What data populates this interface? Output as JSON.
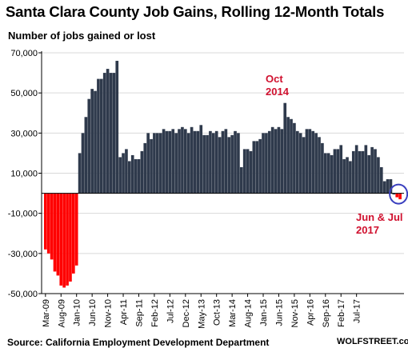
{
  "chart_data": {
    "type": "bar",
    "title": "Santa Clara County Job Gains, Rolling 12-Month Totals",
    "ylabel": "Number of jobs gained or lost",
    "ylim": [
      -50000,
      70000
    ],
    "y_ticks": [
      "70,000",
      "50,000",
      "30,000",
      "10,000",
      "-10,000",
      "-30,000",
      "-50,000"
    ],
    "y_tick_values": [
      70000,
      50000,
      30000,
      10000,
      -10000,
      -30000,
      -50000
    ],
    "x_start": "Mar-09",
    "x_ticks": [
      "Mar-09",
      "Aug-09",
      "Jan-10",
      "Jun-10",
      "Nov-10",
      "Apr-11",
      "Sep-11",
      "Feb-12",
      "Jul-12",
      "Dec-12",
      "May-13",
      "Oct-13",
      "Mar-14",
      "Aug-14",
      "Jan-15",
      "Jun-15",
      "Nov-15",
      "Apr-16",
      "Sep-16",
      "Feb-17",
      "Jul-17"
    ],
    "colors": {
      "positive": "#2f3a4c",
      "negative": "#ff0000",
      "annotation": "#d0102e",
      "highlight_ring": "#3a3fbf"
    },
    "values": [
      -28000,
      -30000,
      -33000,
      -39000,
      -41000,
      -46000,
      -47000,
      -46000,
      -44000,
      -40000,
      -36000,
      20000,
      30000,
      38000,
      47000,
      52000,
      51000,
      57000,
      57000,
      60000,
      62000,
      60000,
      60000,
      66000,
      18000,
      20000,
      22000,
      16000,
      19000,
      17000,
      17000,
      21000,
      25000,
      30000,
      27000,
      30000,
      30000,
      30000,
      32000,
      31000,
      31000,
      32000,
      30000,
      32000,
      33000,
      32000,
      30000,
      33000,
      31000,
      31000,
      34000,
      29000,
      29000,
      31000,
      30000,
      31000,
      28000,
      31000,
      32000,
      28000,
      29000,
      31000,
      30000,
      13000,
      22000,
      22000,
      21000,
      26000,
      26000,
      27000,
      30000,
      30000,
      31000,
      33000,
      32000,
      33000,
      32000,
      45000,
      38000,
      37000,
      35000,
      31000,
      30000,
      28000,
      32000,
      32000,
      31000,
      30000,
      28000,
      25000,
      20000,
      20000,
      19000,
      22000,
      22000,
      24000,
      17000,
      18000,
      16000,
      21000,
      24000,
      21000,
      21000,
      24000,
      19000,
      23000,
      22000,
      18000,
      13000,
      6000,
      7000,
      7000,
      0,
      -2000,
      -3000
    ],
    "annotations": [
      {
        "text_lines": [
          "Oct",
          "2014"
        ],
        "for": "Oct-14 peak"
      },
      {
        "text_lines": [
          "Jun & Jul",
          "2017"
        ],
        "for": "Jun & Jul 2017"
      }
    ]
  },
  "source": "Source: California Employment Development Department",
  "watermark": "WOLFSTREET.com"
}
